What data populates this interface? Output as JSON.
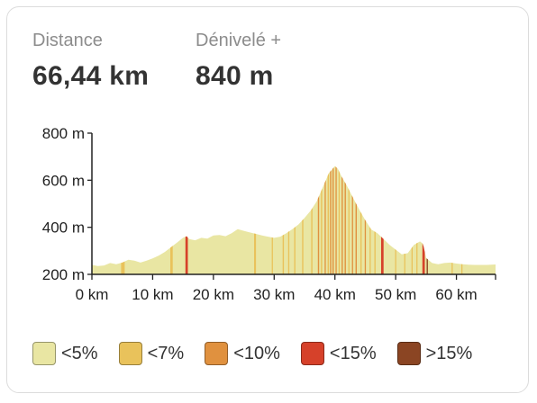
{
  "stats": {
    "distance_label": "Distance",
    "distance_value": "66,44 km",
    "elevation_label": "Dénivelé +",
    "elevation_value": "840 m"
  },
  "colors": {
    "lt5": "#e9e6a3",
    "lt7": "#e9c25b",
    "lt10": "#e0913f",
    "lt15": "#d6412a",
    "gt15": "#8b4523"
  },
  "legend": [
    {
      "label": "<5%",
      "color": "#e9e6a3"
    },
    {
      "label": "<7%",
      "color": "#e9c25b"
    },
    {
      "label": "<10%",
      "color": "#e0913f"
    },
    {
      "label": "<15%",
      "color": "#d6412a"
    },
    {
      "label": ">15%",
      "color": "#8b4523"
    }
  ],
  "chart_data": {
    "type": "area",
    "xlabel": "",
    "ylabel": "",
    "xlim": [
      0,
      66.44
    ],
    "ylim": [
      200,
      800
    ],
    "x_ticks": [
      0,
      10,
      20,
      30,
      40,
      50,
      60
    ],
    "x_tick_labels": [
      "0 km",
      "10 km",
      "20 km",
      "30 km",
      "40 km",
      "50 km",
      "60 km"
    ],
    "y_ticks": [
      200,
      400,
      600,
      800
    ],
    "y_tick_labels": [
      "200 m",
      "400 m",
      "600 m",
      "800 m"
    ],
    "profile": {
      "x": [
        0,
        1,
        2,
        3,
        4,
        5,
        6,
        7,
        8,
        9,
        10,
        11,
        12,
        13,
        14,
        15,
        15.6,
        16,
        17,
        18,
        19,
        20,
        21,
        22,
        23,
        24,
        25,
        26,
        27,
        28,
        29,
        30,
        31,
        32,
        33,
        34,
        35,
        36,
        37,
        38,
        39,
        40,
        40.5,
        41,
        42,
        43,
        44,
        45,
        46,
        47,
        48,
        49,
        50,
        51,
        52,
        53,
        54,
        54.5,
        55,
        56,
        57,
        58,
        59,
        60,
        61,
        62,
        63,
        64,
        65,
        66.44
      ],
      "y": [
        240,
        235,
        238,
        248,
        243,
        250,
        262,
        258,
        250,
        258,
        268,
        280,
        295,
        315,
        335,
        355,
        362,
        350,
        345,
        355,
        352,
        365,
        367,
        362,
        375,
        392,
        385,
        378,
        372,
        365,
        360,
        355,
        360,
        375,
        392,
        412,
        440,
        470,
        510,
        570,
        630,
        660,
        648,
        620,
        575,
        525,
        475,
        430,
        390,
        375,
        350,
        325,
        305,
        285,
        290,
        325,
        340,
        330,
        270,
        248,
        243,
        248,
        250,
        246,
        243,
        241,
        240,
        240,
        240,
        242
      ]
    },
    "segments": [
      {
        "from": 4.8,
        "to": 5.4,
        "grade": "<7%"
      },
      {
        "from": 12.9,
        "to": 13.3,
        "grade": "<7%"
      },
      {
        "from": 15.4,
        "to": 15.8,
        "grade": "<15%"
      },
      {
        "from": 26.7,
        "to": 27,
        "grade": "<7%"
      },
      {
        "from": 29.6,
        "to": 29.8,
        "grade": "<7%"
      },
      {
        "from": 31.4,
        "to": 31.6,
        "grade": "<7%"
      },
      {
        "from": 32.3,
        "to": 32.5,
        "grade": "<7%"
      },
      {
        "from": 33.3,
        "to": 33.5,
        "grade": "<7%"
      },
      {
        "from": 34.6,
        "to": 34.8,
        "grade": "<7%"
      },
      {
        "from": 36.1,
        "to": 36.3,
        "grade": "<7%"
      },
      {
        "from": 37.2,
        "to": 37.4,
        "grade": "<10%"
      },
      {
        "from": 37.7,
        "to": 37.9,
        "grade": "<7%"
      },
      {
        "from": 38.3,
        "to": 38.5,
        "grade": "<10%"
      },
      {
        "from": 38.8,
        "to": 39,
        "grade": "<7%"
      },
      {
        "from": 39.2,
        "to": 39.4,
        "grade": "<10%"
      },
      {
        "from": 39.6,
        "to": 39.8,
        "grade": "<10%"
      },
      {
        "from": 40.1,
        "to": 40.3,
        "grade": "<10%"
      },
      {
        "from": 40.6,
        "to": 40.8,
        "grade": "<7%"
      },
      {
        "from": 41.1,
        "to": 41.3,
        "grade": "<10%"
      },
      {
        "from": 41.6,
        "to": 41.8,
        "grade": "<10%"
      },
      {
        "from": 42.2,
        "to": 42.4,
        "grade": "<7%"
      },
      {
        "from": 42.8,
        "to": 43,
        "grade": "<10%"
      },
      {
        "from": 43.4,
        "to": 43.6,
        "grade": "<10%"
      },
      {
        "from": 44.2,
        "to": 44.4,
        "grade": "<7%"
      },
      {
        "from": 44.9,
        "to": 45.1,
        "grade": "<10%"
      },
      {
        "from": 45.7,
        "to": 45.9,
        "grade": "<7%"
      },
      {
        "from": 46.5,
        "to": 46.7,
        "grade": "<7%"
      },
      {
        "from": 47.6,
        "to": 48,
        "grade": "<15%"
      },
      {
        "from": 49.9,
        "to": 50.1,
        "grade": "<7%"
      },
      {
        "from": 51.4,
        "to": 51.6,
        "grade": "<7%"
      },
      {
        "from": 52.6,
        "to": 52.8,
        "grade": "<7%"
      },
      {
        "from": 53.4,
        "to": 53.6,
        "grade": "<7%"
      },
      {
        "from": 54.4,
        "to": 54.8,
        "grade": "<15%"
      },
      {
        "from": 55.1,
        "to": 55.3,
        "grade": ">15%"
      },
      {
        "from": 59.2,
        "to": 59.4,
        "grade": "<7%"
      },
      {
        "from": 60.8,
        "to": 61,
        "grade": "<7%"
      }
    ]
  }
}
